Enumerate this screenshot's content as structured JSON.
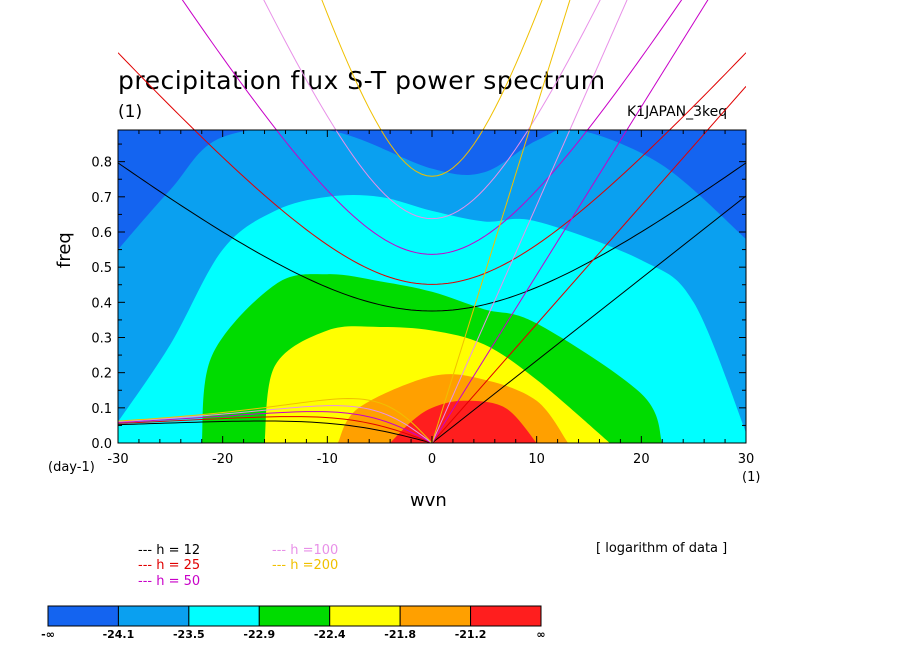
{
  "chart_data": {
    "type": "heatmap",
    "title": "precipitation flux S-T power spectrum",
    "units_label": "(1)",
    "run_label": "K1JAPAN_3keq",
    "xlabel": "wvn",
    "ylabel": "freq",
    "x_unit": "(1)",
    "y_unit": "(day-1)",
    "xlim": [
      -30,
      30
    ],
    "ylim": [
      0,
      0.89
    ],
    "x_ticks": [
      "-30",
      "-20",
      "-10",
      "0",
      "10",
      "20",
      "30"
    ],
    "y_ticks": [
      "0.0",
      "0.1",
      "0.2",
      "0.3",
      "0.4",
      "0.5",
      "0.6",
      "0.7",
      "0.8"
    ],
    "note": "[ logarithm of data ]",
    "levels": [
      "-∞",
      "-24.1",
      "-23.5",
      "-22.9",
      "-22.4",
      "-21.8",
      "-21.2",
      "∞"
    ],
    "colors": [
      "#1464f0",
      "#0aa0f0",
      "#00ffff",
      "#00dc00",
      "#ffff00",
      "#ffa000",
      "#ff1e1e"
    ],
    "dispersion_curves": [
      {
        "name": "h = 12",
        "color": "#000000"
      },
      {
        "name": "h = 25",
        "color": "#e00000"
      },
      {
        "name": "h = 50",
        "color": "#c800c8"
      },
      {
        "name": "h =100",
        "color": "#e890e8"
      },
      {
        "name": "h =200",
        "color": "#f0c000"
      }
    ],
    "contour_regions": [
      {
        "level": "-24.1 to -23.5",
        "freq_max_at_wvn": [
          [
            -30,
            0.55
          ],
          [
            -25,
            0.72
          ],
          [
            -20,
            0.87
          ],
          [
            -10,
            0.89
          ],
          [
            0,
            0.78
          ],
          [
            5,
            0.77
          ],
          [
            10,
            0.86
          ],
          [
            14,
            0.89
          ],
          [
            22,
            0.79
          ],
          [
            30,
            0.58
          ]
        ]
      },
      {
        "level": "-23.5 to -22.9",
        "freq_max_at_wvn": [
          [
            -30,
            0.06
          ],
          [
            -25,
            0.28
          ],
          [
            -20,
            0.55
          ],
          [
            -15,
            0.66
          ],
          [
            -10,
            0.7
          ],
          [
            -5,
            0.7
          ],
          [
            0,
            0.66
          ],
          [
            5,
            0.63
          ],
          [
            10,
            0.63
          ],
          [
            20,
            0.52
          ],
          [
            25,
            0.4
          ],
          [
            30,
            0.03
          ]
        ]
      },
      {
        "level": "-22.9 to -22.4",
        "freq_max_at_wvn": [
          [
            -22,
            0.0
          ],
          [
            -21,
            0.25
          ],
          [
            -15,
            0.45
          ],
          [
            -10,
            0.48
          ],
          [
            -5,
            0.46
          ],
          [
            0,
            0.43
          ],
          [
            5,
            0.38
          ],
          [
            10,
            0.34
          ],
          [
            20,
            0.14
          ],
          [
            22,
            0.0
          ]
        ]
      },
      {
        "level": "-22.4 to -21.8",
        "freq_max_at_wvn": [
          [
            -16,
            0.0
          ],
          [
            -15,
            0.22
          ],
          [
            -10,
            0.32
          ],
          [
            -5,
            0.33
          ],
          [
            0,
            0.32
          ],
          [
            5,
            0.28
          ],
          [
            10,
            0.18
          ],
          [
            17,
            0.0
          ]
        ]
      },
      {
        "level": "-21.8 to -21.2",
        "freq_max_at_wvn": [
          [
            -9,
            0.0
          ],
          [
            -7,
            0.1
          ],
          [
            0,
            0.19
          ],
          [
            5,
            0.18
          ],
          [
            10,
            0.12
          ],
          [
            13,
            0.0
          ]
        ]
      },
      {
        "level": "-21.2 to ∞",
        "freq_max_at_wvn": [
          [
            -4,
            0.0
          ],
          [
            -2,
            0.06
          ],
          [
            0,
            0.1
          ],
          [
            3,
            0.12
          ],
          [
            7,
            0.1
          ],
          [
            10,
            0.0
          ]
        ]
      }
    ]
  }
}
